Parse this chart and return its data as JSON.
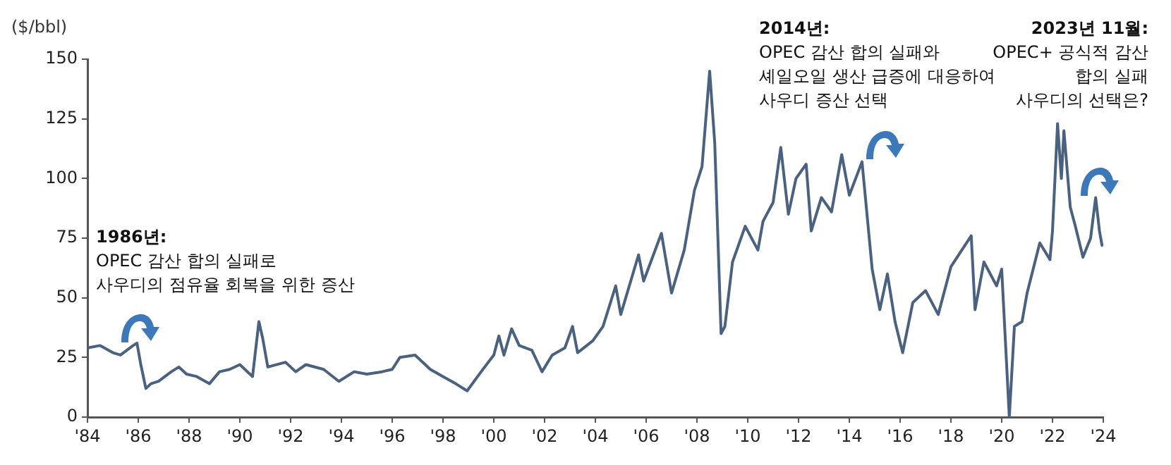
{
  "chart_data": {
    "type": "line",
    "ylabel": "($/bbl)",
    "xlim": [
      1984,
      2024
    ],
    "xticks": [
      {
        "value": 1984,
        "label": "'84"
      },
      {
        "value": 1986,
        "label": "'86"
      },
      {
        "value": 1988,
        "label": "'88"
      },
      {
        "value": 1990,
        "label": "'90"
      },
      {
        "value": 1992,
        "label": "'92"
      },
      {
        "value": 1994,
        "label": "'94"
      },
      {
        "value": 1996,
        "label": "'96"
      },
      {
        "value": 1998,
        "label": "'98"
      },
      {
        "value": 2000,
        "label": "'00"
      },
      {
        "value": 2002,
        "label": "'02"
      },
      {
        "value": 2004,
        "label": "'04"
      },
      {
        "value": 2006,
        "label": "'06"
      },
      {
        "value": 2008,
        "label": "'08"
      },
      {
        "value": 2010,
        "label": "'10"
      },
      {
        "value": 2012,
        "label": "'12"
      },
      {
        "value": 2014,
        "label": "'14"
      },
      {
        "value": 2016,
        "label": "'16"
      },
      {
        "value": 2018,
        "label": "'18"
      },
      {
        "value": 2020,
        "label": "'20"
      },
      {
        "value": 2022,
        "label": "'22"
      },
      {
        "value": 2024,
        "label": "'24"
      }
    ],
    "ylim": [
      0,
      150
    ],
    "yticks": [
      0,
      25,
      50,
      75,
      100,
      125,
      150
    ],
    "grid": false,
    "legend": false,
    "marker": "none",
    "line_style": "solid",
    "x": [
      1984.0,
      1984.5,
      1985.0,
      1985.3,
      1985.8,
      1985.95,
      1986.1,
      1986.3,
      1986.5,
      1986.8,
      1987.3,
      1987.6,
      1987.9,
      1988.3,
      1988.8,
      1989.2,
      1989.6,
      1990.0,
      1990.5,
      1990.75,
      1990.9,
      1991.1,
      1991.8,
      1992.2,
      1992.6,
      1993.3,
      1993.9,
      1994.5,
      1995.0,
      1995.6,
      1996.0,
      1996.3,
      1996.9,
      1997.5,
      1998.0,
      1998.5,
      1998.95,
      1999.5,
      2000.0,
      2000.2,
      2000.4,
      2000.7,
      2001.0,
      2001.5,
      2001.9,
      2002.3,
      2002.8,
      2003.1,
      2003.3,
      2003.9,
      2004.3,
      2004.8,
      2005.0,
      2005.7,
      2005.9,
      2006.6,
      2007.0,
      2007.5,
      2007.9,
      2008.2,
      2008.5,
      2008.7,
      2008.95,
      2009.1,
      2009.4,
      2009.9,
      2010.4,
      2010.6,
      2011.0,
      2011.3,
      2011.6,
      2011.9,
      2012.3,
      2012.5,
      2012.9,
      2013.3,
      2013.7,
      2014.0,
      2014.5,
      2014.9,
      2015.2,
      2015.5,
      2015.8,
      2016.1,
      2016.5,
      2017.0,
      2017.5,
      2018.0,
      2018.8,
      2018.95,
      2019.3,
      2019.8,
      2020.0,
      2020.3,
      2020.5,
      2020.8,
      2021.0,
      2021.5,
      2021.9,
      2022.0,
      2022.2,
      2022.35,
      2022.45,
      2022.7,
      2022.9,
      2023.2,
      2023.5,
      2023.7,
      2023.85,
      2023.95
    ],
    "series": [
      {
        "color": "#4a6180",
        "values": [
          29,
          30,
          27,
          26,
          30,
          31,
          22,
          12,
          14,
          15,
          19,
          21,
          18,
          17,
          14,
          19,
          20,
          22,
          17,
          40,
          33,
          21,
          23,
          19,
          22,
          20,
          15,
          19,
          18,
          19,
          20,
          25,
          26,
          20,
          17,
          14,
          11,
          19,
          26,
          34,
          26,
          37,
          30,
          28,
          19,
          26,
          29,
          38,
          27,
          32,
          38,
          55,
          43,
          68,
          57,
          77,
          52,
          70,
          95,
          105,
          145,
          115,
          35,
          38,
          65,
          80,
          70,
          82,
          90,
          113,
          85,
          100,
          106,
          78,
          92,
          86,
          110,
          93,
          107,
          62,
          45,
          60,
          40,
          27,
          48,
          53,
          43,
          63,
          76,
          45,
          65,
          55,
          62,
          0,
          38,
          40,
          52,
          73,
          66,
          78,
          123,
          100,
          120,
          88,
          80,
          67,
          75,
          92,
          78,
          72
        ]
      }
    ],
    "annotations": [
      "1986년:\nOPEC 감산 합의 실패로\n사우디의 점유율 회복을 위한 증산",
      "2014년:\nOPEC 감산 합의 실패와\n셰일오일 생산 급증에 대응하여\n사우디 증산 선택",
      "2023년 11월:\nOPEC+ 공식적 감산\n합의 실패\n사우디의 선택은?"
    ]
  }
}
